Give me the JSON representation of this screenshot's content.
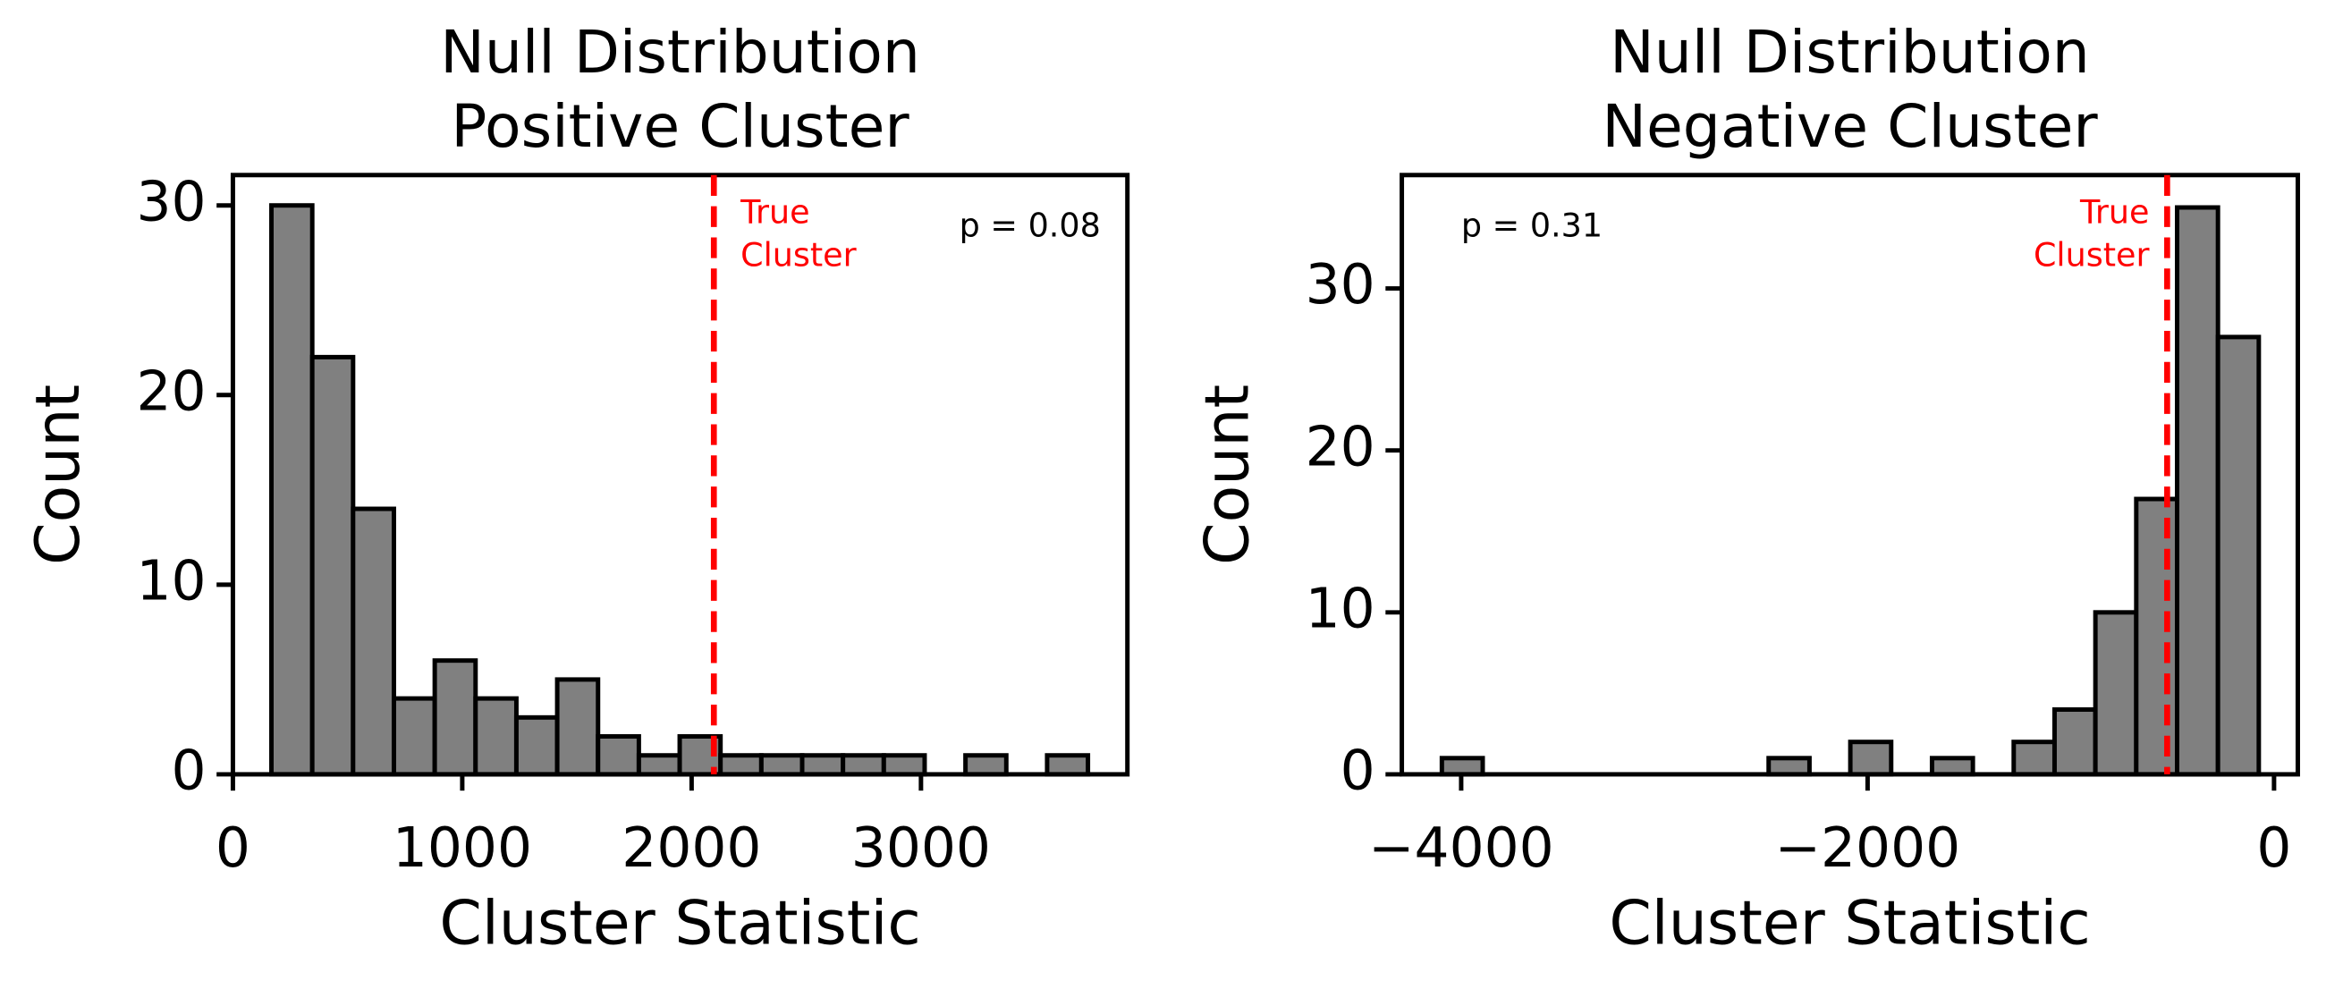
{
  "chart_data": [
    {
      "type": "histogram",
      "title": [
        "Null Distribution",
        "Positive Cluster"
      ],
      "x_label": "Cluster Statistic",
      "y_label": "Count",
      "bins": [
        168,
        346,
        524,
        702,
        880,
        1058,
        1236,
        1414,
        1592,
        1770,
        1948,
        2126,
        2304,
        2482,
        2660,
        2838,
        3016,
        3194,
        3372,
        3550,
        3728
      ],
      "values": [
        30,
        22,
        14,
        4,
        6,
        4,
        3,
        5,
        2,
        1,
        2,
        1,
        1,
        1,
        1,
        1,
        0,
        1,
        0,
        1
      ],
      "color": "#808080",
      "edgecolor": "#000000",
      "xlim": [
        0,
        3900
      ],
      "ylim": [
        0,
        31.6
      ],
      "xticks": [
        0,
        1000,
        2000,
        3000
      ],
      "yticks": [
        0,
        10,
        20,
        30
      ],
      "vline": {
        "x": 2097,
        "color": "#ff0000",
        "label": [
          "True",
          "Cluster"
        ]
      },
      "annotation": "p = 0.08",
      "annotation_corner": "upper right"
    },
    {
      "type": "histogram",
      "title": [
        "Null Distribution",
        "Negative Cluster"
      ],
      "x_label": "Cluster Statistic",
      "y_label": "Count",
      "bins": [
        -4095,
        -3894,
        -3693,
        -3492,
        -3291,
        -3090,
        -2889,
        -2688,
        -2487,
        -2286,
        -2085,
        -1884,
        -1683,
        -1482,
        -1281,
        -1080,
        -879,
        -678,
        -477,
        -276,
        -75
      ],
      "values": [
        1,
        0,
        0,
        0,
        0,
        0,
        0,
        0,
        1,
        0,
        2,
        0,
        1,
        0,
        2,
        4,
        10,
        17,
        35,
        27
      ],
      "color": "#808080",
      "edgecolor": "#000000",
      "xlim": [
        -4292,
        117
      ],
      "ylim": [
        0,
        37
      ],
      "xticks": [
        {
          "value": -4000,
          "label": "−4000"
        },
        {
          "value": -2000,
          "label": "−2000"
        },
        0
      ],
      "yticks": [
        0,
        10,
        20,
        30
      ],
      "vline": {
        "x": -526,
        "color": "#ff0000",
        "label": [
          "True",
          "Cluster"
        ]
      },
      "annotation": "p = 0.31",
      "annotation_corner": "upper left"
    }
  ]
}
